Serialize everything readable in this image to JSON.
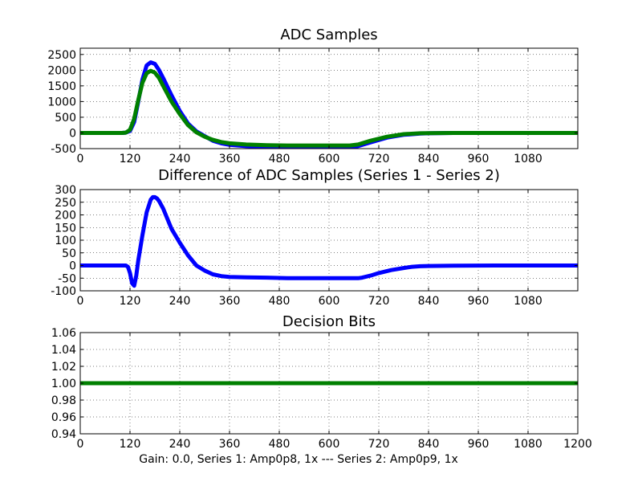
{
  "figure": {
    "xlabel": "Gain: 0.0, Series 1: Amp0p8, 1x --- Series 2: Amp0p9, 1x"
  },
  "chart_data": [
    {
      "type": "scatter",
      "title": "ADC Samples",
      "xlim": [
        0,
        1200
      ],
      "ylim": [
        -500,
        2700
      ],
      "xticks": [
        0,
        120,
        240,
        360,
        480,
        600,
        720,
        840,
        960,
        1080
      ],
      "yticks": [
        -500,
        0,
        500,
        1000,
        1500,
        2000,
        2500
      ],
      "grid": true,
      "series": [
        {
          "name": "Series 1",
          "color": "#0000ff",
          "x": [
            0,
            100,
            110,
            120,
            130,
            140,
            150,
            160,
            170,
            180,
            190,
            200,
            220,
            240,
            260,
            280,
            300,
            320,
            340,
            360,
            400,
            450,
            500,
            550,
            600,
            650,
            670,
            700,
            740,
            780,
            820,
            840,
            900,
            1000,
            1100,
            1200
          ],
          "y": [
            0,
            0,
            10,
            60,
            350,
            1000,
            1700,
            2150,
            2250,
            2200,
            2000,
            1750,
            1200,
            700,
            300,
            50,
            -100,
            -250,
            -330,
            -380,
            -420,
            -440,
            -450,
            -450,
            -450,
            -450,
            -420,
            -300,
            -150,
            -60,
            -20,
            -10,
            0,
            0,
            0,
            0
          ]
        },
        {
          "name": "Series 2",
          "color": "#008000",
          "x": [
            0,
            100,
            110,
            120,
            130,
            140,
            150,
            160,
            170,
            180,
            190,
            200,
            220,
            240,
            260,
            280,
            300,
            320,
            340,
            360,
            400,
            450,
            500,
            550,
            600,
            650,
            670,
            700,
            740,
            780,
            820,
            840,
            900,
            1000,
            1100,
            1200
          ],
          "y": [
            0,
            0,
            10,
            100,
            450,
            1050,
            1600,
            1900,
            1980,
            1920,
            1750,
            1500,
            1000,
            600,
            250,
            20,
            -120,
            -220,
            -290,
            -330,
            -370,
            -390,
            -400,
            -400,
            -400,
            -400,
            -370,
            -250,
            -120,
            -40,
            -10,
            -5,
            0,
            0,
            0,
            0
          ]
        }
      ]
    },
    {
      "type": "scatter",
      "title": "Difference of ADC Samples (Series 1 - Series 2)",
      "xlim": [
        0,
        1200
      ],
      "ylim": [
        -100,
        300
      ],
      "xticks": [
        0,
        120,
        240,
        360,
        480,
        600,
        720,
        840,
        960,
        1080
      ],
      "yticks": [
        -100,
        -50,
        0,
        50,
        100,
        150,
        200,
        250,
        300
      ],
      "grid": true,
      "series": [
        {
          "name": "Difference",
          "color": "#0000ff",
          "x": [
            0,
            100,
            110,
            115,
            120,
            125,
            130,
            135,
            140,
            150,
            160,
            170,
            175,
            180,
            185,
            190,
            200,
            210,
            220,
            240,
            260,
            280,
            300,
            320,
            340,
            360,
            400,
            450,
            500,
            550,
            600,
            650,
            670,
            680,
            700,
            720,
            750,
            780,
            800,
            820,
            840,
            900,
            1000,
            1100,
            1200
          ],
          "y": [
            0,
            0,
            0,
            -5,
            -30,
            -70,
            -80,
            -40,
            20,
            120,
            210,
            260,
            270,
            270,
            265,
            255,
            225,
            185,
            145,
            90,
            40,
            0,
            -20,
            -35,
            -42,
            -45,
            -47,
            -48,
            -50,
            -50,
            -50,
            -50,
            -50,
            -48,
            -40,
            -30,
            -18,
            -10,
            -5,
            -3,
            -2,
            -1,
            0,
            0,
            0
          ]
        }
      ]
    },
    {
      "type": "scatter",
      "title": "Decision Bits",
      "xlim": [
        0,
        1200
      ],
      "ylim": [
        0.94,
        1.06
      ],
      "xticks": [
        0,
        120,
        240,
        360,
        480,
        600,
        720,
        840,
        960,
        1080,
        1200
      ],
      "yticks": [
        0.94,
        0.96,
        0.98,
        1.0,
        1.02,
        1.04,
        1.06
      ],
      "ytick_labels": [
        "0.94",
        "0.96",
        "0.98",
        "1.00",
        "1.02",
        "1.04",
        "1.06"
      ],
      "grid": true,
      "series": [
        {
          "name": "Decision",
          "color": "#008000",
          "x": [
            0,
            1200
          ],
          "y": [
            1.0,
            1.0
          ]
        }
      ]
    }
  ]
}
